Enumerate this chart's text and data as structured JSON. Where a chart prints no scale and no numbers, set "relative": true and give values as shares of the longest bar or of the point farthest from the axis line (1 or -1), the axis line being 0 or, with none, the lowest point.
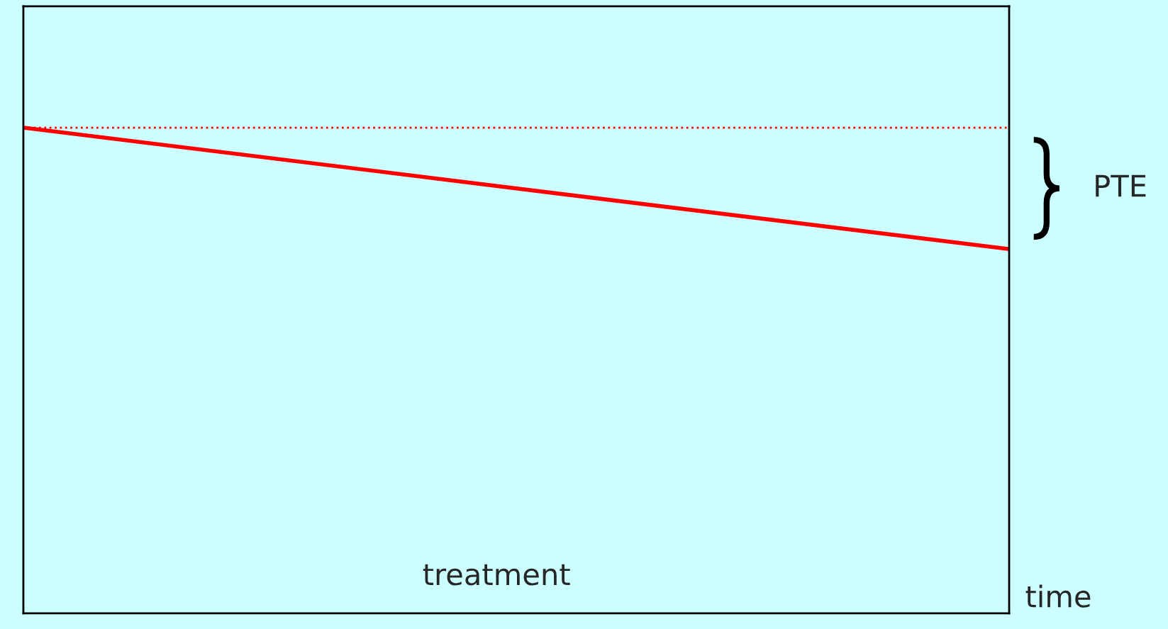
{
  "chart_data": {
    "type": "line",
    "relative": true,
    "xlabel": "time",
    "categories": [
      null,
      null
    ],
    "series": [
      {
        "color": "#ff0000",
        "values": [
          1,
          0.75
        ],
        "line_style": "solid"
      },
      {
        "color": "#ff0000",
        "values": [
          1,
          1
        ],
        "line_style": "dotted"
      }
    ],
    "annotations": [
      "treatment",
      "PTE"
    ],
    "legend": false,
    "marker": "none"
  }
}
